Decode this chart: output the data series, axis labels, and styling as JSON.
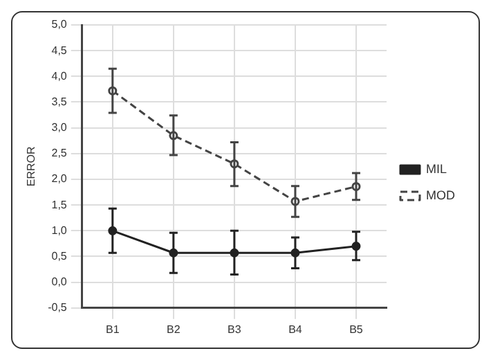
{
  "chart_data": {
    "type": "line",
    "ylabel": "ERROR",
    "categories": [
      "B1",
      "B2",
      "B3",
      "B4",
      "B5"
    ],
    "series": [
      {
        "name": "MIL",
        "color": "#222222",
        "values": [
          1.0,
          0.57,
          0.57,
          0.57,
          0.7
        ],
        "errors": [
          [
            0.57,
            1.43
          ],
          [
            0.18,
            0.96
          ],
          [
            0.15,
            1.0
          ],
          [
            0.27,
            0.87
          ],
          [
            0.43,
            0.98
          ]
        ],
        "line_style": "solid",
        "marker": "circle"
      },
      {
        "name": "MOD",
        "color": "#444444",
        "values": [
          3.72,
          2.85,
          2.3,
          1.57,
          1.86
        ],
        "errors": [
          [
            3.29,
            4.15
          ],
          [
            2.47,
            3.24
          ],
          [
            1.87,
            2.72
          ],
          [
            1.27,
            1.87
          ],
          [
            1.6,
            2.12
          ]
        ],
        "line_style": "dashed",
        "marker": "circle"
      }
    ],
    "ylim": [
      -0.5,
      5.0
    ],
    "yticks": [
      {
        "value": -0.5,
        "label": "-0,5"
      },
      {
        "value": 0,
        "label": "0,0"
      },
      {
        "value": 0.5,
        "label": "0,5"
      },
      {
        "value": 1,
        "label": "1,0"
      },
      {
        "value": 1.5,
        "label": "1,5"
      },
      {
        "value": 2,
        "label": "2,0"
      },
      {
        "value": 2.5,
        "label": "2,5"
      },
      {
        "value": 3,
        "label": "3,0"
      },
      {
        "value": 3.5,
        "label": "3,5"
      },
      {
        "value": 4,
        "label": "4,0"
      },
      {
        "value": 4.5,
        "label": "4,5"
      },
      {
        "value": 5,
        "label": "5,0"
      }
    ],
    "grid": true,
    "legend": "right"
  }
}
